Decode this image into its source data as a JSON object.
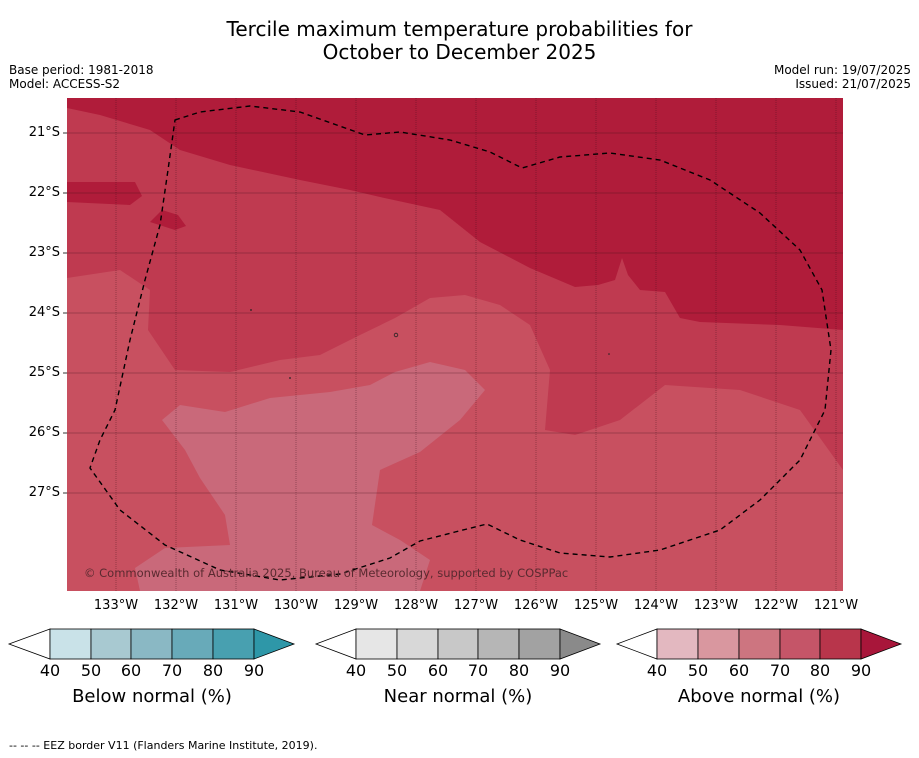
{
  "title_line1": "Tercile maximum temperature probabilities for",
  "title_line2": "October to December 2025",
  "meta": {
    "base_period": "Base period: 1981-2018",
    "model": "Model: ACCESS-S2",
    "model_run": "Model run: 19/07/2025",
    "issued": "Issued: 21/07/2025"
  },
  "map": {
    "lat_labels": [
      "21°S",
      "22°S",
      "23°S",
      "24°S",
      "25°S",
      "26°S",
      "27°S"
    ],
    "lon_labels": [
      "133°W",
      "132°W",
      "131°W",
      "130°W",
      "129°W",
      "128°W",
      "127°W",
      "126°W",
      "125°W",
      "124°W",
      "123°W",
      "122°W",
      "121°W"
    ],
    "copyright": "© Commonwealth of Australia 2025, Bureau of Meteorology, supported by COSPPac",
    "colors": {
      "above_80_90": "#b01c3a",
      "above_70_80": "#bf3a50",
      "above_60_70": "#c85060",
      "above_50_60": "#c9697a"
    }
  },
  "colorbars": [
    {
      "title": "Below normal (%)",
      "ticks": [
        "40",
        "50",
        "60",
        "70",
        "80",
        "90"
      ],
      "colors": [
        "#c9e2e8",
        "#a8c9d1",
        "#8ab8c4",
        "#68aab9",
        "#48a0b0",
        "#2e97a8"
      ]
    },
    {
      "title": "Near normal (%)",
      "ticks": [
        "40",
        "50",
        "60",
        "70",
        "80",
        "90"
      ],
      "colors": [
        "#e6e6e6",
        "#d8d8d8",
        "#c8c8c8",
        "#b6b6b6",
        "#a2a2a2",
        "#8a8a8a"
      ]
    },
    {
      "title": "Above normal (%)",
      "ticks": [
        "40",
        "50",
        "60",
        "70",
        "80",
        "90"
      ],
      "colors": [
        "#e3b8c0",
        "#d9979f",
        "#cd7580",
        "#c55568",
        "#b8354b",
        "#a8163a"
      ]
    }
  ],
  "footnote": "--  --  -- EEZ border V11 (Flanders Marine Institute, 2019)."
}
